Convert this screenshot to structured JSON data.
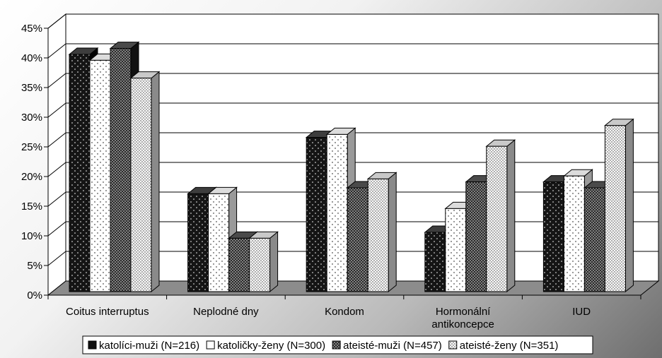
{
  "chart_data": {
    "type": "bar",
    "categories": [
      "Coitus interruptus",
      "Neplodné dny",
      "Kondom",
      "Hormonální antikoncepce",
      "IUD"
    ],
    "category_lines": [
      [
        "Coitus interruptus"
      ],
      [
        "Neplodné dny"
      ],
      [
        "Kondom"
      ],
      [
        "Hormonální",
        "antikoncepce"
      ],
      [
        "IUD"
      ]
    ],
    "series": [
      {
        "name": "katolíci-muži (N=216)",
        "values": [
          40,
          16.5,
          26,
          10,
          18.5
        ]
      },
      {
        "name": "katoličky-ženy (N=300)",
        "values": [
          39,
          16.5,
          26.5,
          14,
          19.5
        ]
      },
      {
        "name": "ateisté-muži (N=457)",
        "values": [
          41,
          9,
          17.5,
          18.5,
          17.5
        ]
      },
      {
        "name": "ateisté-ženy (N=351)",
        "values": [
          36,
          9,
          19,
          24.5,
          28
        ]
      }
    ],
    "ylim": [
      0,
      45
    ],
    "y_ticks": [
      "0%",
      "5%",
      "10%",
      "15%",
      "20%",
      "25%",
      "30%",
      "35%",
      "40%",
      "45%"
    ],
    "grid": true,
    "legend_position": "bottom",
    "colors": {
      "katolici_muzi": "#1a1a1a",
      "katolicky_zeny": "#ffffff",
      "ateiste_muzi": "#333333",
      "ateiste_zeny": "#f4f4f4",
      "floor": "#8c8c8c"
    }
  }
}
